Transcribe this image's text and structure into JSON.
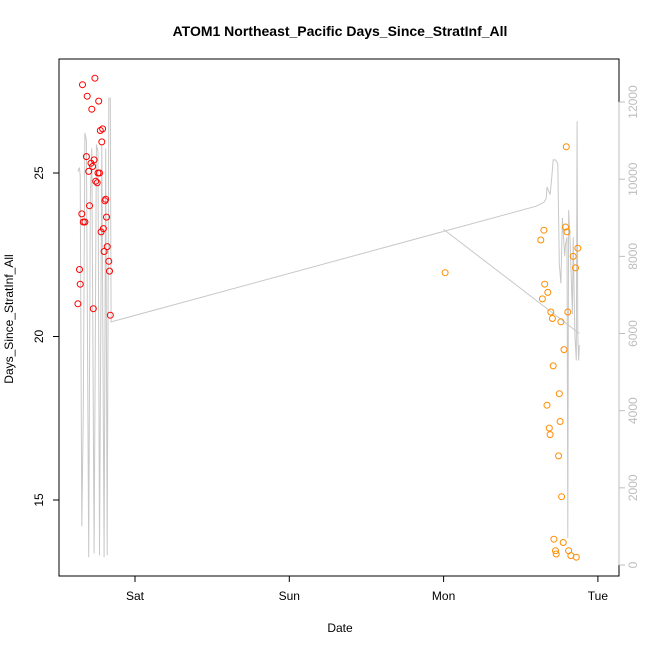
{
  "chart_data": {
    "type": "scatter",
    "title": "ATOM1 Northeast_Pacific Days_Since_StratInf_All",
    "xlabel": "Date",
    "ylabel": "Days_Since_StratInf_All",
    "x_axis": {
      "unit": "days",
      "ticks": [
        {
          "value": 1,
          "label": "Sat"
        },
        {
          "value": 2,
          "label": "Sun"
        },
        {
          "value": 3,
          "label": "Mon"
        },
        {
          "value": 4,
          "label": "Tue"
        }
      ]
    },
    "left_axis": {
      "ticks": [
        15,
        20,
        25
      ]
    },
    "right_axis": {
      "ticks": [
        0,
        2000,
        4000,
        6000,
        8000,
        10000,
        12000
      ]
    },
    "grid": false,
    "series": [
      {
        "color": "#ff0000",
        "points": [
          [
            0.63,
            21.0
          ],
          [
            0.64,
            22.05
          ],
          [
            0.645,
            21.6
          ],
          [
            0.655,
            23.75
          ],
          [
            0.66,
            27.7
          ],
          [
            0.665,
            23.5
          ],
          [
            0.675,
            23.5
          ],
          [
            0.685,
            25.5
          ],
          [
            0.69,
            27.35
          ],
          [
            0.7,
            25.05
          ],
          [
            0.705,
            24.0
          ],
          [
            0.715,
            25.3
          ],
          [
            0.72,
            26.95
          ],
          [
            0.725,
            25.2
          ],
          [
            0.73,
            20.85
          ],
          [
            0.735,
            25.4
          ],
          [
            0.74,
            27.9
          ],
          [
            0.745,
            24.75
          ],
          [
            0.755,
            24.7
          ],
          [
            0.76,
            25.0
          ],
          [
            0.765,
            27.2
          ],
          [
            0.77,
            25.0
          ],
          [
            0.775,
            26.3
          ],
          [
            0.78,
            23.2
          ],
          [
            0.785,
            25.95
          ],
          [
            0.79,
            26.35
          ],
          [
            0.795,
            23.3
          ],
          [
            0.8,
            22.6
          ],
          [
            0.805,
            24.15
          ],
          [
            0.81,
            24.2
          ],
          [
            0.815,
            23.65
          ],
          [
            0.82,
            22.75
          ],
          [
            0.83,
            22.3
          ],
          [
            0.835,
            22.0
          ],
          [
            0.84,
            20.65
          ]
        ]
      },
      {
        "color": "#ff8c00",
        "points": [
          [
            3.01,
            21.95
          ],
          [
            3.63,
            22.95
          ],
          [
            3.64,
            21.15
          ],
          [
            3.65,
            23.25
          ],
          [
            3.655,
            21.6
          ],
          [
            3.67,
            17.9
          ],
          [
            3.675,
            21.35
          ],
          [
            3.685,
            17.2
          ],
          [
            3.69,
            17.0
          ],
          [
            3.695,
            20.75
          ],
          [
            3.705,
            20.55
          ],
          [
            3.71,
            19.1
          ],
          [
            3.715,
            13.8
          ],
          [
            3.725,
            13.45
          ],
          [
            3.73,
            13.35
          ],
          [
            3.745,
            16.35
          ],
          [
            3.75,
            18.25
          ],
          [
            3.755,
            17.4
          ],
          [
            3.76,
            20.45
          ],
          [
            3.765,
            15.1
          ],
          [
            3.775,
            13.7
          ],
          [
            3.78,
            19.6
          ],
          [
            3.79,
            23.35
          ],
          [
            3.795,
            25.8
          ],
          [
            3.8,
            23.2
          ],
          [
            3.805,
            20.75
          ],
          [
            3.81,
            13.45
          ],
          [
            3.825,
            13.3
          ],
          [
            3.84,
            22.45
          ],
          [
            3.855,
            22.1
          ],
          [
            3.86,
            13.25
          ],
          [
            3.87,
            22.7
          ]
        ]
      }
    ],
    "line_series": {
      "color": "#c8c8c8",
      "axis": "right",
      "points": [
        [
          0.63,
          10200
        ],
        [
          0.64,
          10300
        ],
        [
          0.645,
          10100
        ],
        [
          0.655,
          1000
        ],
        [
          0.665,
          4000
        ],
        [
          0.675,
          11200
        ],
        [
          0.685,
          11000
        ],
        [
          0.7,
          200
        ],
        [
          0.71,
          9500
        ],
        [
          0.72,
          10800
        ],
        [
          0.735,
          300
        ],
        [
          0.75,
          10900
        ],
        [
          0.76,
          10700
        ],
        [
          0.77,
          250
        ],
        [
          0.785,
          10900
        ],
        [
          0.8,
          200
        ],
        [
          0.81,
          10800
        ],
        [
          0.82,
          250
        ],
        [
          0.83,
          12100
        ],
        [
          0.84,
          12100
        ],
        [
          0.845,
          6300
        ],
        [
          3.6,
          9300
        ],
        [
          3.65,
          9400
        ],
        [
          3.665,
          9500
        ],
        [
          3.67,
          9800
        ],
        [
          3.68,
          9700
        ],
        [
          3.69,
          9600
        ],
        [
          3.7,
          10000
        ],
        [
          3.71,
          10500
        ],
        [
          3.725,
          10500
        ],
        [
          3.74,
          10400
        ],
        [
          3.75,
          7800
        ],
        [
          3.76,
          7300
        ],
        [
          3.77,
          9000
        ],
        [
          3.785,
          8000
        ],
        [
          3.79,
          8300
        ],
        [
          3.8,
          8500
        ],
        [
          3.805,
          700
        ],
        [
          3.81,
          9200
        ],
        [
          3.82,
          8400
        ],
        [
          3.835,
          6500
        ],
        [
          3.84,
          8500
        ],
        [
          3.85,
          6000
        ],
        [
          3.86,
          5300
        ],
        [
          3.865,
          11500
        ],
        [
          3.87,
          6000
        ],
        [
          3.875,
          5300
        ],
        [
          3.88,
          5700
        ]
      ],
      "second_segment": [
        [
          3.0,
          8700
        ],
        [
          3.88,
          6000
        ]
      ]
    }
  }
}
